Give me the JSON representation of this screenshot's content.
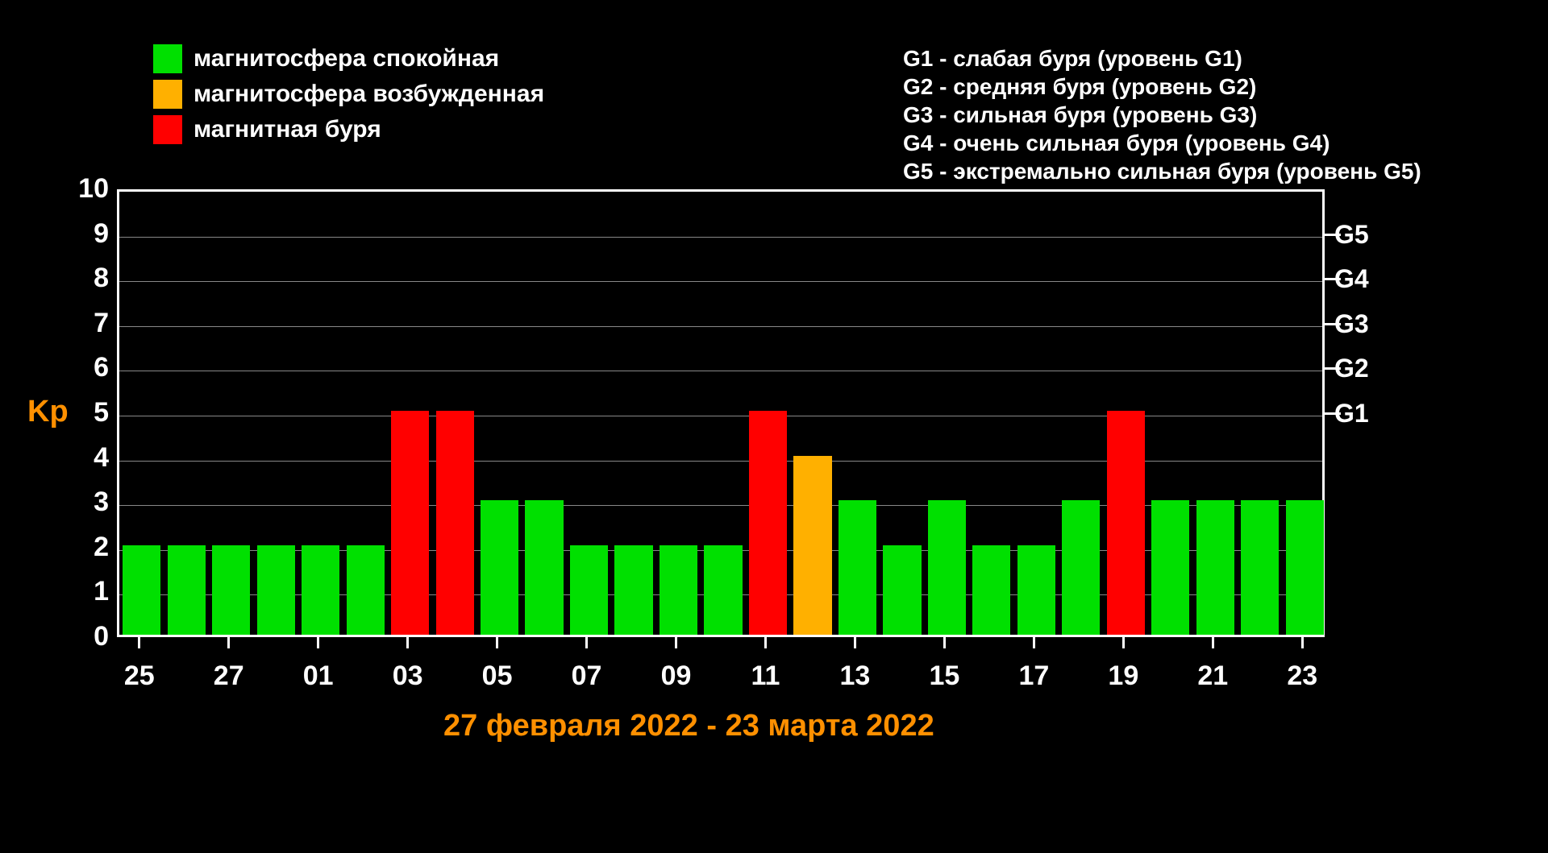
{
  "chart": {
    "type": "bar",
    "background_color": "#000000",
    "axis_color": "#ffffff",
    "grid_color": "#888888",
    "text_color": "#ffffff",
    "accent_color": "#ff9000",
    "ylabel": "Kp",
    "ylabel_color": "#ff9000",
    "ylim": [
      0,
      10
    ],
    "yticks": [
      0,
      1,
      2,
      3,
      4,
      5,
      6,
      7,
      8,
      9,
      10
    ],
    "ytick_fontsize": 34,
    "xtick_labels": [
      "25",
      "27",
      "01",
      "03",
      "05",
      "07",
      "09",
      "11",
      "13",
      "15",
      "17",
      "19",
      "21",
      "23"
    ],
    "xtick_fontsize": 34,
    "right_ticks": [
      {
        "label": "G5",
        "value": 9
      },
      {
        "label": "G4",
        "value": 8
      },
      {
        "label": "G3",
        "value": 7
      },
      {
        "label": "G2",
        "value": 6
      },
      {
        "label": "G1",
        "value": 5
      }
    ],
    "date_range": "27 февраля 2022 - 23 марта 2022",
    "bar_width_ratio": 0.85,
    "bars": [
      {
        "value": 2,
        "color": "#00e000"
      },
      {
        "value": 2,
        "color": "#00e000"
      },
      {
        "value": 2,
        "color": "#00e000"
      },
      {
        "value": 2,
        "color": "#00e000"
      },
      {
        "value": 2,
        "color": "#00e000"
      },
      {
        "value": 2,
        "color": "#00e000"
      },
      {
        "value": 5,
        "color": "#ff0000"
      },
      {
        "value": 5,
        "color": "#ff0000"
      },
      {
        "value": 3,
        "color": "#00e000"
      },
      {
        "value": 3,
        "color": "#00e000"
      },
      {
        "value": 2,
        "color": "#00e000"
      },
      {
        "value": 2,
        "color": "#00e000"
      },
      {
        "value": 2,
        "color": "#00e000"
      },
      {
        "value": 2,
        "color": "#00e000"
      },
      {
        "value": 5,
        "color": "#ff0000"
      },
      {
        "value": 4,
        "color": "#ffb000"
      },
      {
        "value": 3,
        "color": "#00e000"
      },
      {
        "value": 2,
        "color": "#00e000"
      },
      {
        "value": 3,
        "color": "#00e000"
      },
      {
        "value": 2,
        "color": "#00e000"
      },
      {
        "value": 2,
        "color": "#00e000"
      },
      {
        "value": 3,
        "color": "#00e000"
      },
      {
        "value": 5,
        "color": "#ff0000"
      },
      {
        "value": 3,
        "color": "#00e000"
      },
      {
        "value": 3,
        "color": "#00e000"
      },
      {
        "value": 3,
        "color": "#00e000"
      },
      {
        "value": 3,
        "color": "#00e000"
      }
    ]
  },
  "legend_left": [
    {
      "color": "#00e000",
      "label": "магнитосфера спокойная"
    },
    {
      "color": "#ffb000",
      "label": "магнитосфера возбужденная"
    },
    {
      "color": "#ff0000",
      "label": "магнитная буря"
    }
  ],
  "legend_right": [
    "G1 - слабая буря (уровень G1)",
    "G2 - средняя буря (уровень G2)",
    "G3 - сильная буря (уровень G3)",
    "G4 - очень сильная буря (уровень G4)",
    "G5 - экстремально сильная буря (уровень G5)"
  ]
}
